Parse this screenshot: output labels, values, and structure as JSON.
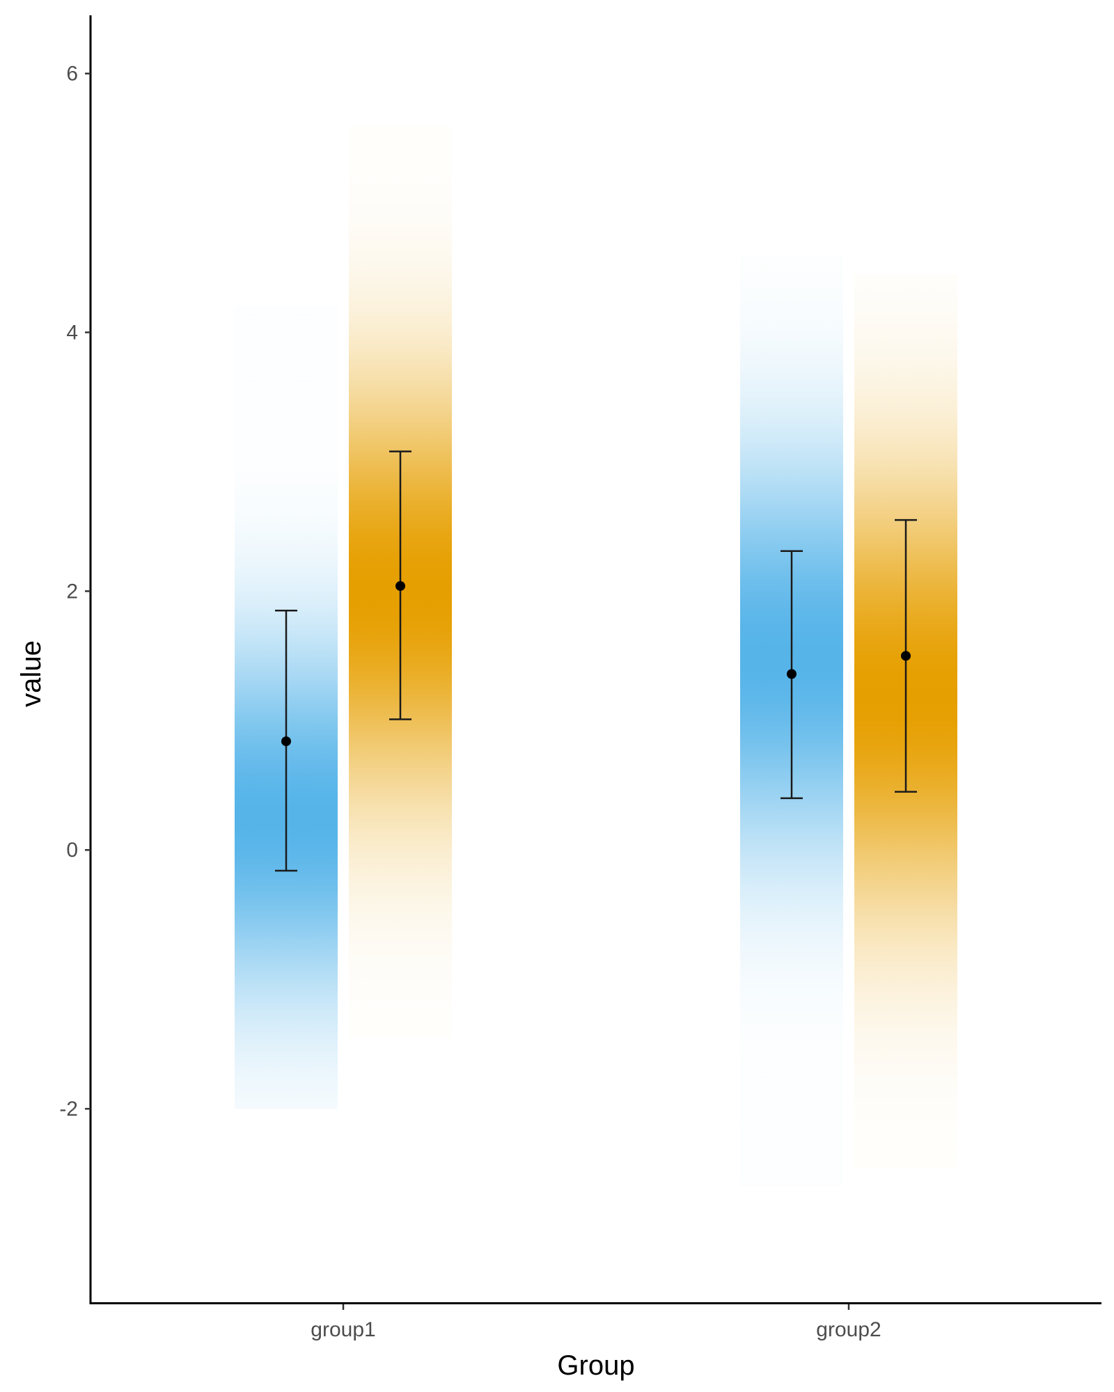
{
  "chart_data": {
    "type": "gradient-interval",
    "xlabel": "Group",
    "ylabel": "value",
    "categories": [
      "group1",
      "group2"
    ],
    "ylim": [
      -3.5,
      6.45
    ],
    "yticks": [
      -2,
      0,
      2,
      4,
      6
    ],
    "colors": {
      "series_a": "#56B4E9",
      "series_b": "#E69F00"
    },
    "points": [
      {
        "category": "group1",
        "color": "#56B4E9",
        "mean": 0.84,
        "lower": -0.16,
        "upper": 1.85,
        "dist_mean": 0.25,
        "dist_sd": 0.95,
        "dist_min": -2.0,
        "dist_max": 4.2
      },
      {
        "category": "group1",
        "color": "#E69F00",
        "mean": 2.04,
        "lower": 1.01,
        "upper": 3.08,
        "dist_mean": 2.0,
        "dist_sd": 1.1,
        "dist_min": -1.45,
        "dist_max": 5.6
      },
      {
        "category": "group2",
        "color": "#56B4E9",
        "mean": 1.36,
        "lower": 0.4,
        "upper": 2.31,
        "dist_mean": 1.5,
        "dist_sd": 1.05,
        "dist_min": -2.6,
        "dist_max": 4.6
      },
      {
        "category": "group2",
        "color": "#E69F00",
        "mean": 1.5,
        "lower": 0.45,
        "upper": 2.55,
        "dist_mean": 1.2,
        "dist_sd": 1.15,
        "dist_min": -2.45,
        "dist_max": 4.45
      }
    ]
  }
}
